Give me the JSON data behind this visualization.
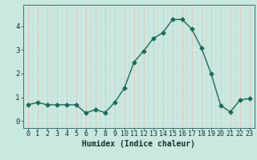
{
  "x": [
    0,
    1,
    2,
    3,
    4,
    5,
    6,
    7,
    8,
    9,
    10,
    11,
    12,
    13,
    14,
    15,
    16,
    17,
    18,
    19,
    20,
    21,
    22,
    23
  ],
  "y": [
    0.68,
    0.78,
    0.68,
    0.68,
    0.68,
    0.68,
    0.33,
    0.48,
    0.35,
    0.78,
    1.38,
    2.48,
    2.95,
    3.48,
    3.72,
    4.28,
    4.28,
    3.88,
    3.08,
    2.0,
    0.65,
    0.38,
    0.88,
    0.95
  ],
  "xlabel": "Humidex (Indice chaleur)",
  "xlim": [
    -0.5,
    23.5
  ],
  "ylim": [
    -0.3,
    4.9
  ],
  "yticks": [
    0,
    1,
    2,
    3,
    4
  ],
  "xticks": [
    0,
    1,
    2,
    3,
    4,
    5,
    6,
    7,
    8,
    9,
    10,
    11,
    12,
    13,
    14,
    15,
    16,
    17,
    18,
    19,
    20,
    21,
    22,
    23
  ],
  "bg_color": "#c8e8e0",
  "grid_color_v": "#e8b8b8",
  "grid_color_h": "#d8f0e8",
  "line_color": "#1a6b5a",
  "marker": "D",
  "marker_size": 2.5,
  "line_width": 1.0,
  "xlabel_fontsize": 7,
  "tick_fontsize": 6,
  "ytick_fontsize": 6.5
}
